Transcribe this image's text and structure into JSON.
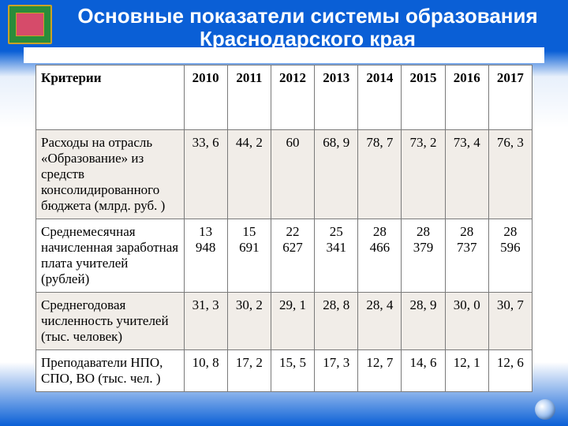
{
  "title_line1": "Основные показатели системы образования",
  "title_line2": "Краснодарского края",
  "table": {
    "header_label": "Критерии",
    "years": [
      "2010",
      "2011",
      "2012",
      "2013",
      "2014",
      "2015",
      "2016",
      "2017"
    ],
    "rows": [
      {
        "label": "Расходы на отрасль «Образование» из средств консолидированного бюджета (млрд. руб. )",
        "values": [
          "33, 6",
          "44, 2",
          "60",
          "68, 9",
          "78, 7",
          "73, 2",
          "73, 4",
          "76, 3"
        ],
        "shaded": true
      },
      {
        "label": "Среднемесячная начисленная заработная плата учителей (рублей)",
        "values": [
          "13 948",
          "15 691",
          "22 627",
          "25 341",
          "28 466",
          "28 379",
          "28 737",
          "28 596"
        ],
        "shaded": false
      },
      {
        "label": "Среднегодовая численность учителей (тыс. человек)",
        "values": [
          "31, 3",
          "30, 2",
          "29, 1",
          "28, 8",
          "28, 4",
          "28, 9",
          "30, 0",
          "30, 7"
        ],
        "shaded": true
      },
      {
        "label": "Преподаватели НПО, СПО, ВО (тыс. чел. )",
        "values": [
          "10, 8",
          "17, 2",
          "15, 5",
          "17, 3",
          "12, 7",
          "14, 6",
          "12, 1",
          "12, 6"
        ],
        "shaded": false
      }
    ]
  },
  "colors": {
    "brand_blue": "#0a5fd6",
    "shaded_row": "#f1ede8",
    "border": "#7a7a7a"
  }
}
